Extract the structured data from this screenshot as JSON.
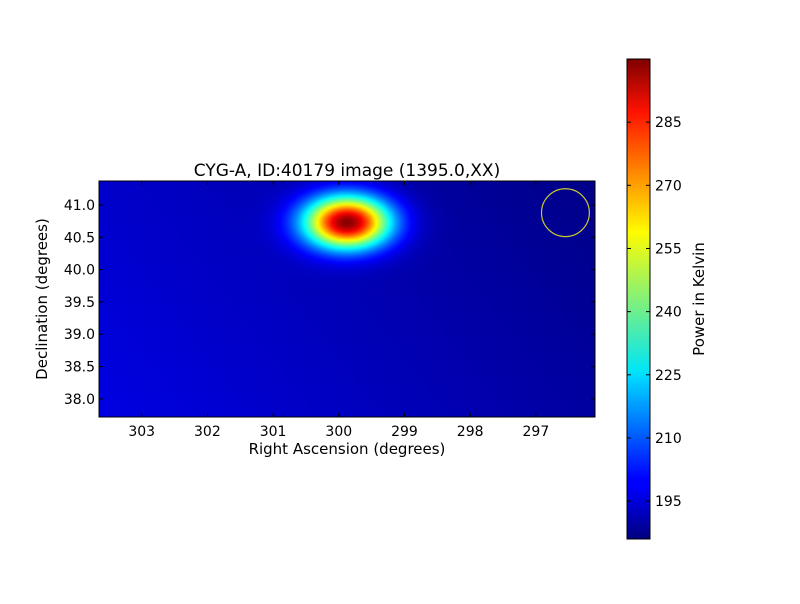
{
  "chart_data": {
    "type": "heatmap",
    "title": "CYG-A, ID:40179 image (1395.0,XX)",
    "xlabel": "Right Ascension (degrees)",
    "ylabel": "Declination (degrees)",
    "xlim": [
      303.65,
      296.1
    ],
    "ylim": [
      37.72,
      41.37
    ],
    "x_inverted": true,
    "xticks": [
      303,
      302,
      301,
      300,
      299,
      298,
      297
    ],
    "yticks": [
      38.0,
      38.5,
      39.0,
      39.5,
      40.0,
      40.5,
      41.0
    ],
    "xtick_labels": [
      "303",
      "302",
      "301",
      "300",
      "299",
      "298",
      "297"
    ],
    "ytick_labels": [
      "38.0",
      "38.5",
      "39.0",
      "39.5",
      "40.0",
      "40.5",
      "41.0"
    ],
    "colormap": "jet",
    "colorbar": {
      "label": "Power in Kelvin",
      "range": [
        186,
        300
      ],
      "ticks": [
        195,
        210,
        225,
        240,
        255,
        270,
        285
      ],
      "tick_labels": [
        "195",
        "210",
        "225",
        "240",
        "255",
        "270",
        "285"
      ]
    },
    "background_level": 192,
    "source": {
      "ra": 299.87,
      "dec": 40.73,
      "peak": 300,
      "sigma_ra": 0.45,
      "sigma_dec": 0.28
    },
    "beam_marker": {
      "shape": "circle",
      "ra": 296.55,
      "dec": 40.88,
      "radius_deg": 0.37,
      "color": "#c8c832"
    }
  }
}
